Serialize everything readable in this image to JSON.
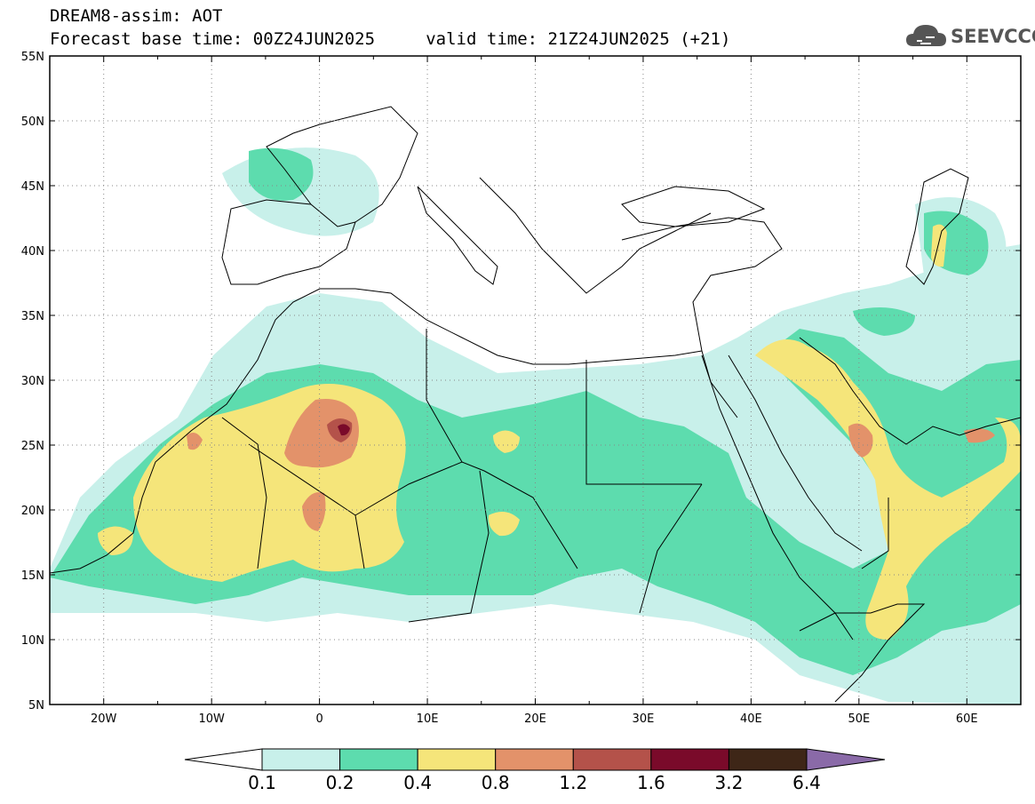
{
  "header": {
    "line1": "DREAM8-assim: AOT",
    "line2": "Forecast base time: 00Z24JUN2025     valid time: 21Z24JUN2025 (+21)"
  },
  "logo": {
    "text": "SEEVCCC",
    "icon": "cloud-icon"
  },
  "axes": {
    "lat_labels": [
      "55N",
      "50N",
      "45N",
      "40N",
      "35N",
      "30N",
      "25N",
      "20N",
      "15N",
      "10N",
      "5N"
    ],
    "lon_labels": [
      "20W",
      "10W",
      "0",
      "10E",
      "20E",
      "30E",
      "40E",
      "50E",
      "60E"
    ]
  },
  "colorbar": {
    "labels": [
      "0.1",
      "0.2",
      "0.4",
      "0.8",
      "1.2",
      "1.6",
      "3.2",
      "6.4"
    ],
    "colors": [
      "#c8f0ea",
      "#5ddcae",
      "#f5e57a",
      "#e3926a",
      "#b4524a",
      "#7a0a2a",
      "#3e2617",
      "#8a6aa8"
    ],
    "under_color": "#ffffff"
  },
  "colors": {
    "coast": "#000000",
    "grid": "#666666"
  }
}
